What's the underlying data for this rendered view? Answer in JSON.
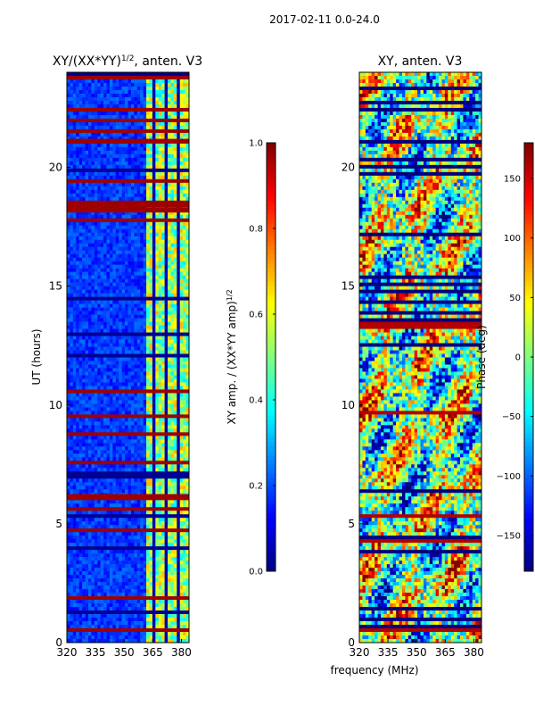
{
  "figure": {
    "suptitle": "2017-02-11 0.0-24.0",
    "shared_xlabel": "frequency (MHz)"
  },
  "chart_data": [
    {
      "type": "heatmap",
      "title": "XY/(XX*YY)",
      "title_superscript": "1/2",
      "title_suffix": ", anten. V3",
      "xlabel": "",
      "ylabel": "UT (hours)",
      "xlim": [
        320,
        384
      ],
      "ylim": [
        0,
        24
      ],
      "x_ticks": [
        320,
        335,
        350,
        365,
        380
      ],
      "y_ticks": [
        0,
        5,
        10,
        15,
        20
      ],
      "colormap": "jet",
      "colorbar": {
        "label": "XY amp. / (XX*YY amp)",
        "label_superscript": "1/2",
        "range": [
          0.0,
          1.0
        ],
        "ticks": [
          "0.0",
          "0.2",
          "0.4",
          "0.6",
          "0.8",
          "1.0"
        ],
        "tick_values": [
          0.0,
          0.2,
          0.4,
          0.6,
          0.8,
          1.0
        ]
      },
      "bright_band_freq_mhz": [
        361,
        384
      ],
      "saturated_bands_hours": [
        [
          0.5,
          0.6
        ],
        [
          6.0,
          6.25
        ],
        [
          18.1,
          18.3
        ],
        [
          21.0,
          21.2
        ]
      ]
    },
    {
      "type": "heatmap",
      "title": "XY, anten. V3",
      "xlabel": "frequency (MHz)",
      "ylabel": "",
      "xlim": [
        320,
        384
      ],
      "ylim": [
        0,
        24
      ],
      "x_ticks": [
        320,
        335,
        350,
        365,
        380
      ],
      "y_ticks": [
        0,
        5,
        10,
        15,
        20
      ],
      "colormap": "jet",
      "colorbar": {
        "label": "Phase (deg)",
        "range": [
          -180,
          180
        ],
        "ticks": [
          "150",
          "100",
          "50",
          "0",
          "−50",
          "−100",
          "−150"
        ],
        "tick_values": [
          150,
          100,
          50,
          0,
          -50,
          -100,
          -150
        ]
      }
    }
  ],
  "colors": {
    "jet": [
      "#00007f",
      "#0000ff",
      "#007fff",
      "#00ffff",
      "#7fff7f",
      "#ffff00",
      "#ff7f00",
      "#ff0000",
      "#7f0000"
    ],
    "axes": "#000000",
    "background": "#ffffff"
  }
}
